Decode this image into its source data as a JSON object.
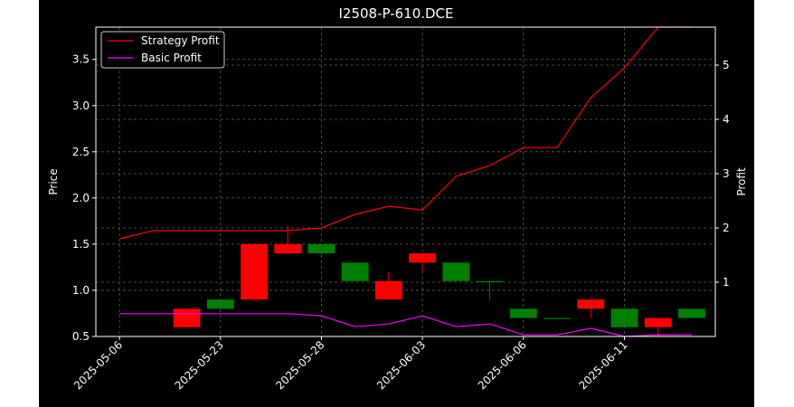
{
  "chart_data": {
    "type": "candlestick+line",
    "title": "I2508-P-610.DCE",
    "xlabel": "",
    "ylabel_left": "Price",
    "ylabel_right": "Profit",
    "ylim_left": [
      0.5,
      3.85
    ],
    "ylim_right": [
      0.0,
      5.7
    ],
    "xlim": [
      -0.7,
      17.7
    ],
    "grid": true,
    "legend_position": "upper-left",
    "x_tick_labels": [
      {
        "index": 0,
        "label": "2025-05-06"
      },
      {
        "index": 3,
        "label": "2025-05-23"
      },
      {
        "index": 6,
        "label": "2025-05-28"
      },
      {
        "index": 9,
        "label": "2025-06-03"
      },
      {
        "index": 12,
        "label": "2025-06-06"
      },
      {
        "index": 15,
        "label": "2025-06-11"
      }
    ],
    "y_ticks_left": [
      "0.5",
      "1.0",
      "1.5",
      "2.0",
      "2.5",
      "3.0",
      "3.5"
    ],
    "y_ticks_left_values": [
      0.5,
      1.0,
      1.5,
      2.0,
      2.5,
      3.0,
      3.5
    ],
    "y_ticks_right": [
      "1",
      "2",
      "3",
      "4",
      "5"
    ],
    "y_ticks_right_values": [
      1,
      2,
      3,
      4,
      5
    ],
    "candles": [
      {
        "i": 2,
        "open": 0.8,
        "close": 0.6,
        "high": 0.8,
        "low": 0.6
      },
      {
        "i": 3,
        "open": 0.8,
        "close": 0.9,
        "high": 0.9,
        "low": 0.8
      },
      {
        "i": 4,
        "open": 1.5,
        "close": 0.9,
        "high": 1.5,
        "low": 0.9
      },
      {
        "i": 5,
        "open": 1.5,
        "close": 1.4,
        "high": 1.7,
        "low": 1.4
      },
      {
        "i": 6,
        "open": 1.4,
        "close": 1.5,
        "high": 1.5,
        "low": 1.35
      },
      {
        "i": 7,
        "open": 1.1,
        "close": 1.3,
        "high": 1.3,
        "low": 1.1
      },
      {
        "i": 8,
        "open": 1.1,
        "close": 0.9,
        "high": 1.2,
        "low": 0.9
      },
      {
        "i": 9,
        "open": 1.4,
        "close": 1.3,
        "high": 1.4,
        "low": 1.2
      },
      {
        "i": 10,
        "open": 1.1,
        "close": 1.3,
        "high": 1.3,
        "low": 1.1
      },
      {
        "i": 11,
        "open": 1.1,
        "close": 1.1,
        "high": 1.1,
        "low": 0.9
      },
      {
        "i": 12,
        "open": 0.7,
        "close": 0.8,
        "high": 0.8,
        "low": 0.7
      },
      {
        "i": 13,
        "open": 0.7,
        "close": 0.7,
        "high": 0.7,
        "low": 0.7
      },
      {
        "i": 14,
        "open": 0.9,
        "close": 0.8,
        "high": 0.9,
        "low": 0.7
      },
      {
        "i": 15,
        "open": 0.6,
        "close": 0.8,
        "high": 0.8,
        "low": 0.6
      },
      {
        "i": 16,
        "open": 0.7,
        "close": 0.6,
        "high": 0.7,
        "low": 0.5
      },
      {
        "i": 17,
        "open": 0.7,
        "close": 0.8,
        "high": 0.8,
        "low": 0.7
      }
    ],
    "series": [
      {
        "name": "Strategy Profit",
        "color": "#ff0000",
        "axis": "right",
        "x": [
          0,
          1,
          2,
          3,
          4,
          5,
          6,
          7,
          8,
          9,
          10,
          11,
          12,
          13,
          14,
          15,
          16,
          17
        ],
        "values": [
          1.8,
          1.95,
          1.95,
          1.95,
          1.95,
          1.95,
          2.0,
          2.25,
          2.4,
          2.33,
          2.95,
          3.15,
          3.48,
          3.48,
          4.4,
          4.95,
          5.7,
          5.7
        ]
      },
      {
        "name": "Basic Profit",
        "color": "#ff00ff",
        "axis": "right",
        "x": [
          0,
          1,
          2,
          3,
          4,
          5,
          6,
          7,
          8,
          9,
          10,
          11,
          12,
          13,
          14,
          15,
          16,
          17
        ],
        "values": [
          0.42,
          0.42,
          0.42,
          0.42,
          0.42,
          0.42,
          0.38,
          0.18,
          0.23,
          0.38,
          0.18,
          0.23,
          0.03,
          0.03,
          0.15,
          0.0,
          0.03,
          0.03
        ]
      }
    ],
    "colors": {
      "background": "#000000",
      "up": "#008000",
      "down": "#ff0000",
      "axes": "#ffffff",
      "grid": "#777777"
    }
  }
}
